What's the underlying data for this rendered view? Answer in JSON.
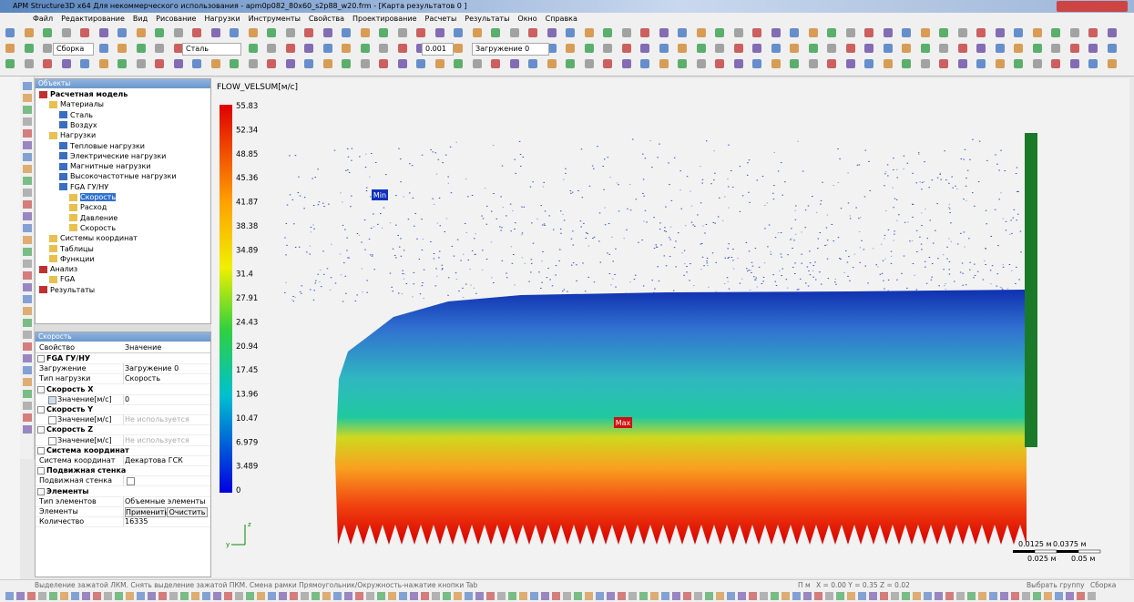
{
  "window": {
    "title": "APM Structure3D x64 Для некоммерческого использования - apm0p082_80x60_s2p88_w20.frm - [Карта результатов 0 ]"
  },
  "menu": [
    "Файл",
    "Редактирование",
    "Вид",
    "Рисование",
    "Нагрузки",
    "Инструменты",
    "Свойства",
    "Проектирование",
    "Расчеты",
    "Результаты",
    "Окно",
    "Справка"
  ],
  "toolbar": {
    "assembly": "Сборка",
    "material": "Сталь",
    "step": "0.001",
    "loading": "Загружение 0"
  },
  "objects_panel": {
    "title": "Объекты",
    "items": [
      {
        "level": 0,
        "text": "Расчетная модель"
      },
      {
        "level": 1,
        "text": "Материалы"
      },
      {
        "level": 2,
        "text": "Сталь"
      },
      {
        "level": 2,
        "text": "Воздух"
      },
      {
        "level": 1,
        "text": "Нагрузки"
      },
      {
        "level": 2,
        "text": "Тепловые нагрузки"
      },
      {
        "level": 2,
        "text": "Электрические нагрузки"
      },
      {
        "level": 2,
        "text": "Магнитные нагрузки"
      },
      {
        "level": 2,
        "text": "Высокочастотные нагрузки"
      },
      {
        "level": 2,
        "text": "FGA ГУ/НУ"
      },
      {
        "level": 3,
        "text": "Скорость",
        "selected": true
      },
      {
        "level": 3,
        "text": "Расход"
      },
      {
        "level": 3,
        "text": "Давление"
      },
      {
        "level": 3,
        "text": "Скорость"
      },
      {
        "level": 1,
        "text": "Системы координат"
      },
      {
        "level": 1,
        "text": "Таблицы"
      },
      {
        "level": 1,
        "text": "Функции"
      },
      {
        "level": 0,
        "text": "Анализ"
      },
      {
        "level": 1,
        "text": "FGA"
      },
      {
        "level": 0,
        "text": "Результаты"
      }
    ]
  },
  "properties_panel": {
    "title": "Скорость",
    "columns": [
      "Свойство",
      "Значение"
    ],
    "rows": [
      {
        "section": "FGA ГУ/НУ"
      },
      {
        "property": "Загружение",
        "value": "Загружение 0"
      },
      {
        "property": "Тип нагрузки",
        "value": "Скорость"
      },
      {
        "section": "Скорость X"
      },
      {
        "property": "Значение[м/с]",
        "value": "0",
        "checked": true
      },
      {
        "section": "Скорость Y"
      },
      {
        "property": "Значение[м/с]",
        "value": "Не используется",
        "checked": false
      },
      {
        "section": "Скорость Z"
      },
      {
        "property": "Значение[м/с]",
        "value": "Не используется",
        "checked": false
      },
      {
        "section": "Система координат"
      },
      {
        "property": "Система координат",
        "value": "Декартова ГСК"
      },
      {
        "section": "Подвижная стенка"
      },
      {
        "property": "Подвижная стенка",
        "checked": false
      },
      {
        "section": "Элементы"
      },
      {
        "property": "Тип элементов",
        "value": "Объемные элементы"
      },
      {
        "property": "Элементы",
        "buttons": [
          "Применить",
          "Очистить"
        ]
      },
      {
        "property": "Количество",
        "value": "16335"
      }
    ]
  },
  "view": {
    "field": "FLOW_VELSUM[м/с]",
    "legend": [
      "55.83",
      "52.34",
      "48.85",
      "45.36",
      "41.87",
      "38.38",
      "34.89",
      "31.4",
      "27.91",
      "24.43",
      "20.94",
      "17.45",
      "13.96",
      "10.47",
      "6.979",
      "3.489",
      "0"
    ],
    "min_label": "Min",
    "max_label": "Max",
    "scale": {
      "top": [
        "0.0125 м",
        "0.0375 м"
      ],
      "bottom": [
        "0.025 м",
        "0.05 м"
      ]
    }
  },
  "status": {
    "hint": "Выделение зажатой ЛКМ. Снять выделение зажатой ПКМ. Смена рамки Прямоугольник/Окружность-нажатие кнопки Tab",
    "units": "П м",
    "coords": "X = 0.00 Y = 0.35 Z = 0.02",
    "mode": "Выбрать группу",
    "assembly": "Сборка"
  }
}
